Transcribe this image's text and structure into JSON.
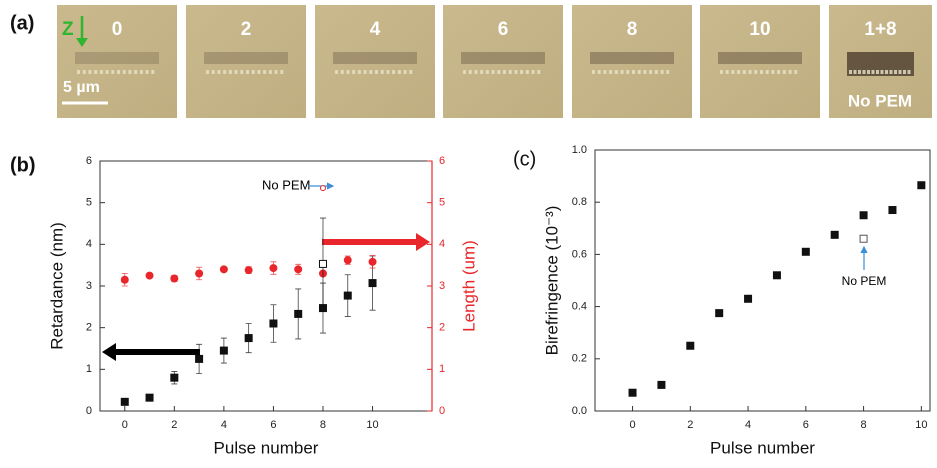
{
  "panel_labels": [
    "(a)",
    "(b)",
    "(c)"
  ],
  "micrographs": {
    "labels": [
      "0",
      "2",
      "4",
      "6",
      "8",
      "10",
      "1+8"
    ],
    "axis_label": "Z",
    "scale_bar": "5 µm",
    "note": "No PEM"
  },
  "chart_data": [
    {
      "type": "scatter",
      "xlabel": "Pulse number",
      "ylabel": "Retardance (nm)",
      "y2label": "Length (um)",
      "y2color": "#e8262b",
      "xlim": [
        -1,
        12.4
      ],
      "xticks": [
        0,
        2,
        4,
        6,
        8,
        10
      ],
      "ylim": [
        0,
        6
      ],
      "yticks": [
        0,
        1,
        2,
        3,
        4,
        5,
        6
      ],
      "y2lim": [
        0,
        6
      ],
      "y2ticks": [
        0,
        1,
        2,
        3,
        4,
        5,
        6
      ],
      "annotations": [
        "No PEM"
      ],
      "series": [
        {
          "color": "#111111",
          "marker": "square",
          "x": [
            0,
            1,
            2,
            3,
            4,
            5,
            6,
            7,
            8,
            9,
            10
          ],
          "values": [
            0.22,
            0.32,
            0.8,
            1.25,
            1.45,
            1.75,
            2.1,
            2.33,
            2.47,
            2.77,
            3.07
          ],
          "errors": [
            0.05,
            0.05,
            0.15,
            0.35,
            0.3,
            0.35,
            0.45,
            0.6,
            0.6,
            0.5,
            0.65
          ]
        },
        {
          "color": "#e8262b",
          "marker": "circle",
          "axis": "y2",
          "x": [
            0,
            1,
            2,
            3,
            4,
            5,
            6,
            7,
            8,
            9,
            10
          ],
          "values": [
            3.15,
            3.25,
            3.18,
            3.3,
            3.4,
            3.38,
            3.43,
            3.4,
            3.3,
            3.62,
            3.58
          ],
          "errors": [
            0.15,
            0.05,
            0.07,
            0.15,
            0.05,
            0.08,
            0.15,
            0.12,
            0.05,
            0.1,
            0.15
          ]
        },
        {
          "color": "#111111",
          "marker": "open-square",
          "x": [
            8
          ],
          "values": [
            3.53
          ],
          "errors": [
            1.1
          ]
        },
        {
          "color": "#e8262b",
          "marker": "open-circle",
          "axis": "y2",
          "x": [
            8
          ],
          "values": [
            5.35
          ]
        }
      ]
    },
    {
      "type": "scatter",
      "xlabel": "Pulse number",
      "ylabel": "Birefringence (10⁻³)",
      "xlim": [
        -1.3,
        10.3
      ],
      "xticks": [
        0,
        2,
        4,
        6,
        8,
        10
      ],
      "ylim": [
        0,
        1
      ],
      "yticks": [
        {
          "value": 0,
          "label": "0.0"
        },
        0.2,
        0.4,
        0.6,
        0.8,
        {
          "value": 1,
          "label": "1.0"
        }
      ],
      "annotations": [
        "No PEM"
      ],
      "series": [
        {
          "color": "#111111",
          "marker": "square",
          "x": [
            0,
            1,
            2,
            3,
            4,
            5,
            6,
            7,
            8,
            9,
            10
          ],
          "values": [
            0.07,
            0.1,
            0.25,
            0.375,
            0.43,
            0.52,
            0.61,
            0.675,
            0.75,
            0.77,
            0.865
          ]
        },
        {
          "color": "#555555",
          "marker": "open-square",
          "x": [
            8
          ],
          "values": [
            0.66
          ]
        }
      ]
    }
  ]
}
